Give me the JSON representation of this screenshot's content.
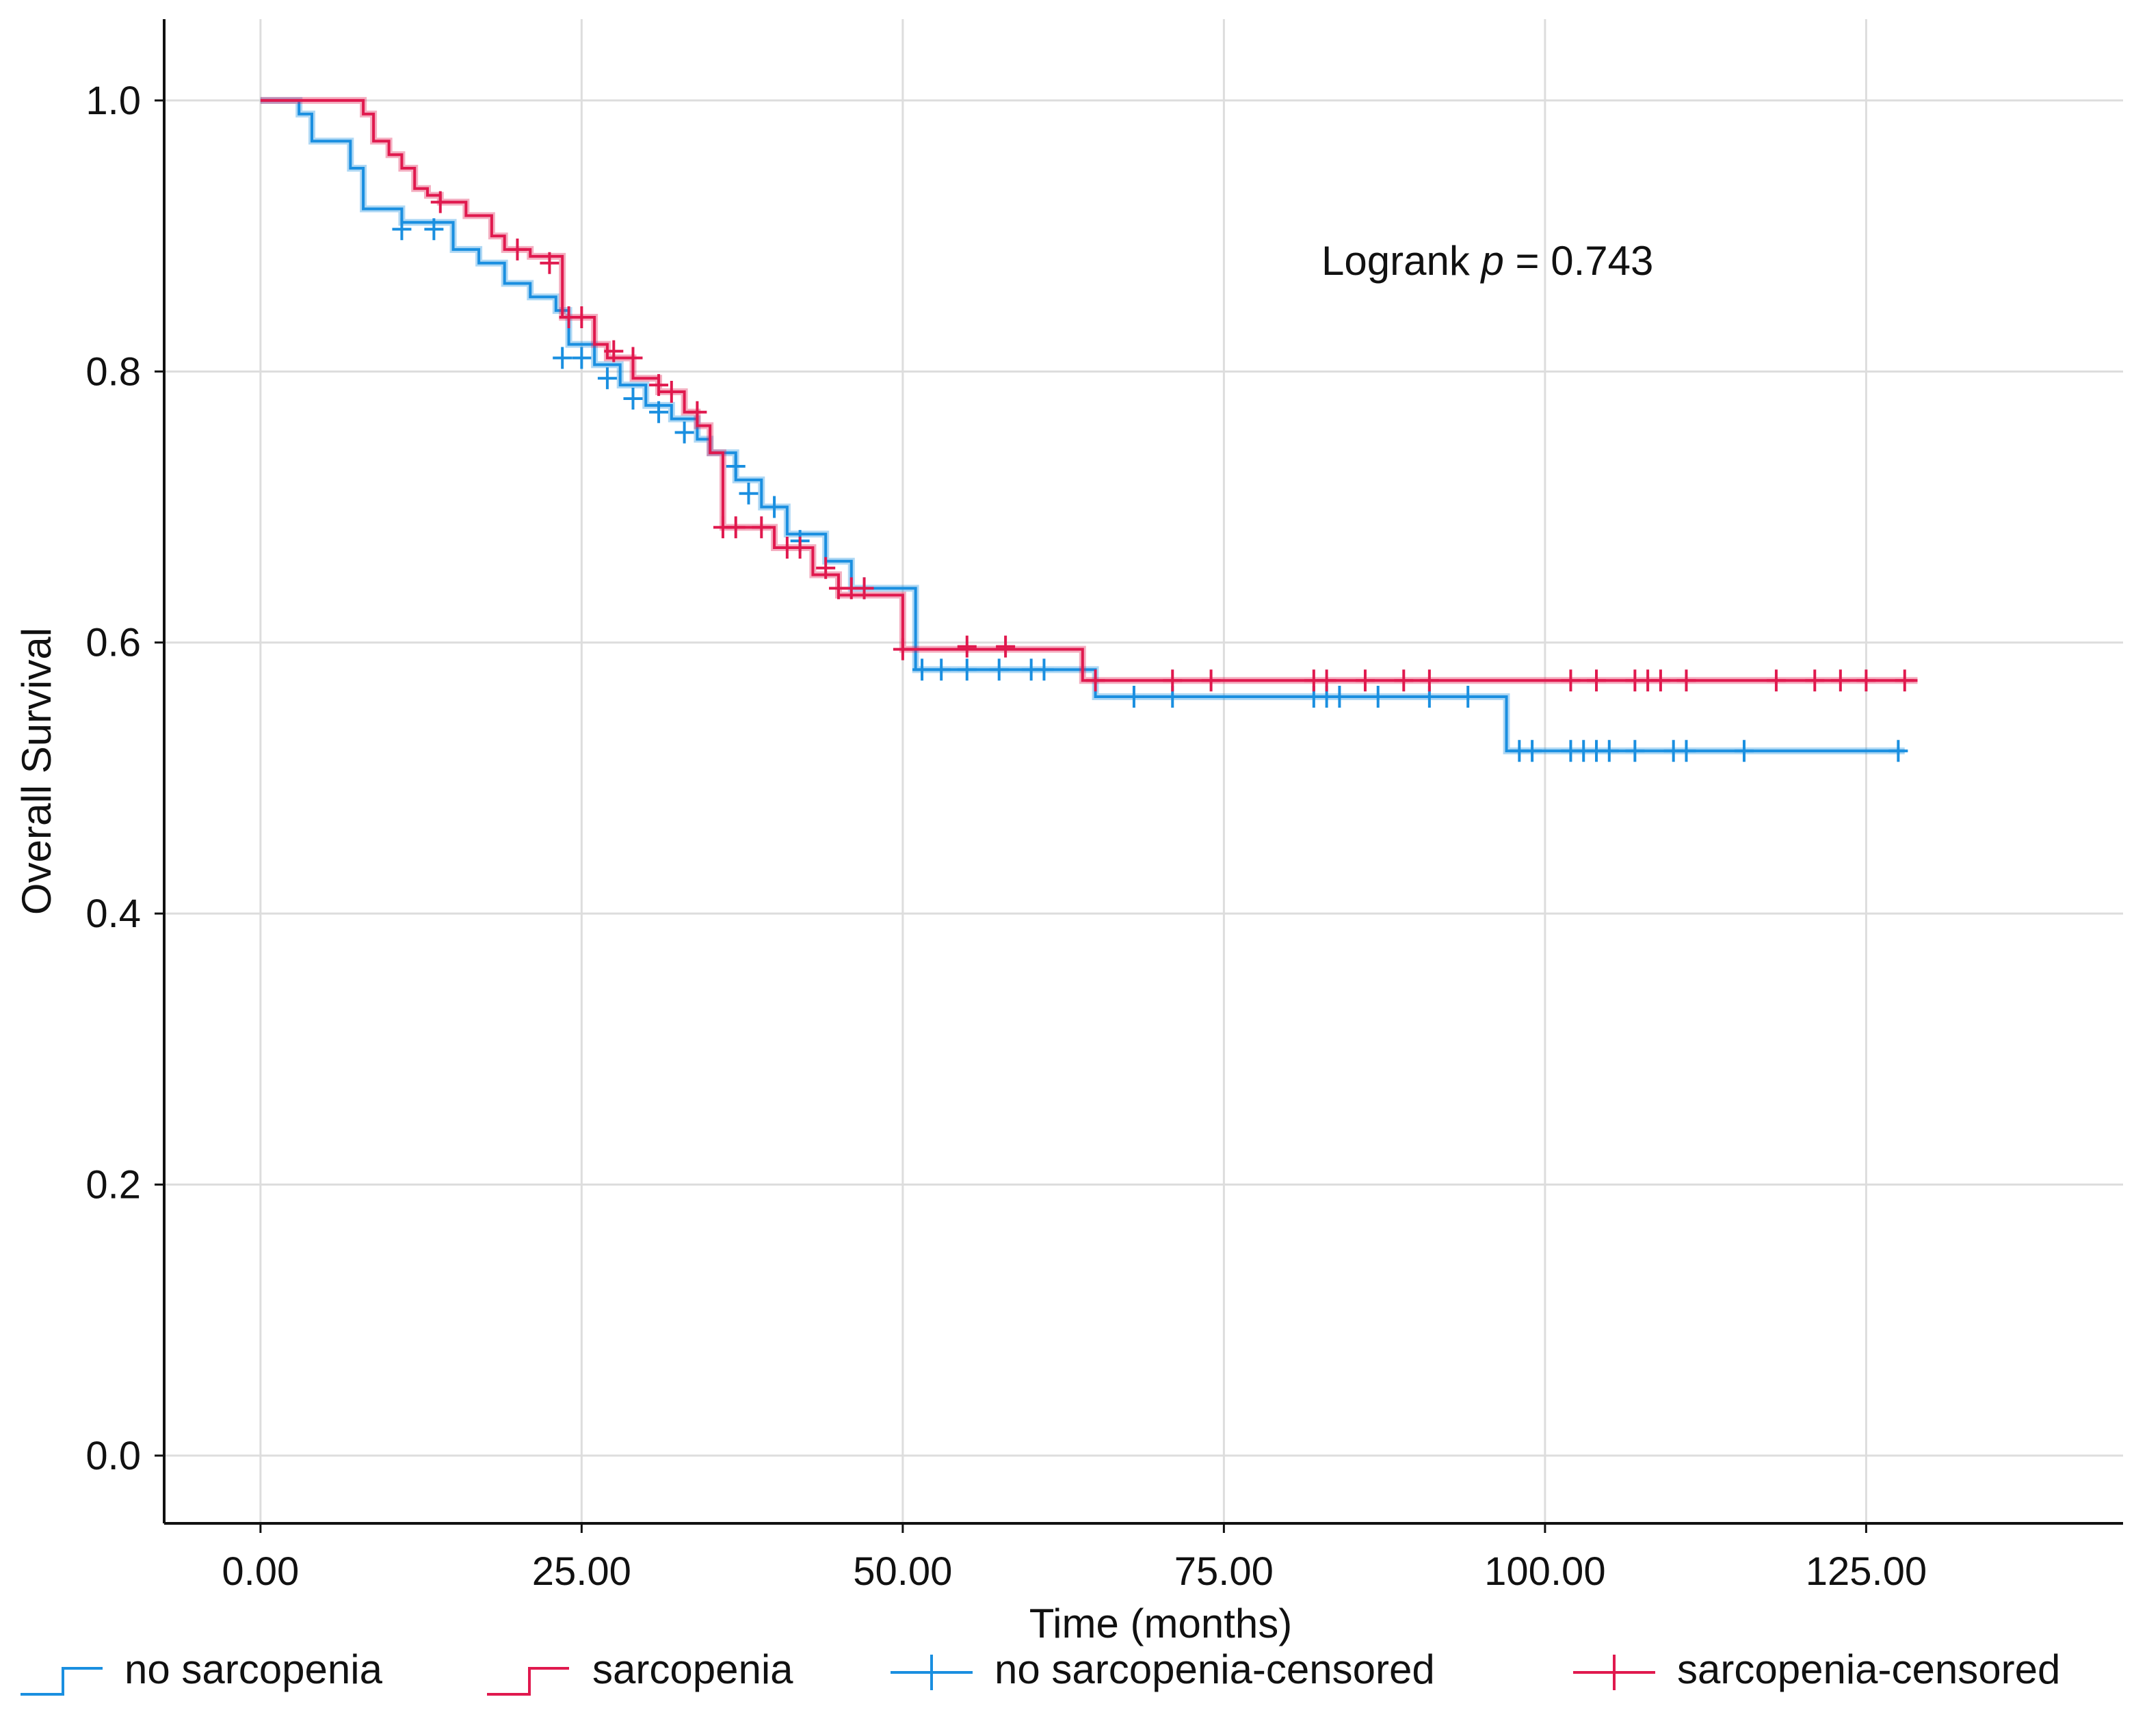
{
  "chart_data": {
    "type": "line",
    "subtype": "kaplan-meier",
    "title": "",
    "xlabel": "Time (months)",
    "ylabel": "Overall Survival",
    "xlim": [
      -7.5,
      145
    ],
    "ylim": [
      -0.05,
      1.06
    ],
    "xticks": [
      0,
      25,
      50,
      75,
      100,
      125
    ],
    "xtick_labels": [
      "0.00",
      "25.00",
      "50.00",
      "75.00",
      "100.00",
      "125.00"
    ],
    "yticks": [
      0.0,
      0.2,
      0.4,
      0.6,
      0.8,
      1.0
    ],
    "ytick_labels": [
      "0.0",
      "0.2",
      "0.4",
      "0.6",
      "0.8",
      "1.0"
    ],
    "grid": true,
    "legend_position": "bottom",
    "annotation": {
      "prefix": "Logrank ",
      "italic": "p",
      "suffix": " = 0.743"
    },
    "series": [
      {
        "name": "no sarcopenia",
        "color": "#1a8fe0",
        "steps": [
          [
            0,
            1.0
          ],
          [
            3,
            0.99
          ],
          [
            4,
            0.97
          ],
          [
            7,
            0.95
          ],
          [
            8,
            0.92
          ],
          [
            11,
            0.91
          ],
          [
            15,
            0.89
          ],
          [
            17,
            0.88
          ],
          [
            19,
            0.865
          ],
          [
            21,
            0.855
          ],
          [
            23,
            0.845
          ],
          [
            24,
            0.82
          ],
          [
            26,
            0.805
          ],
          [
            28,
            0.79
          ],
          [
            30,
            0.775
          ],
          [
            32,
            0.765
          ],
          [
            34,
            0.75
          ],
          [
            35,
            0.74
          ],
          [
            37,
            0.72
          ],
          [
            39,
            0.7
          ],
          [
            41,
            0.68
          ],
          [
            44,
            0.66
          ],
          [
            46,
            0.64
          ],
          [
            51,
            0.58
          ],
          [
            65,
            0.56
          ],
          [
            97,
            0.52
          ],
          [
            128,
            0.52
          ]
        ],
        "censored": [
          [
            11,
            0.905
          ],
          [
            13.5,
            0.905
          ],
          [
            23.5,
            0.81
          ],
          [
            25,
            0.81
          ],
          [
            27,
            0.795
          ],
          [
            29,
            0.78
          ],
          [
            31,
            0.77
          ],
          [
            33,
            0.755
          ],
          [
            37,
            0.73
          ],
          [
            38,
            0.71
          ],
          [
            40,
            0.7
          ],
          [
            42,
            0.675
          ],
          [
            47,
            0.64
          ],
          [
            51.5,
            0.58
          ],
          [
            53,
            0.58
          ],
          [
            55,
            0.58
          ],
          [
            57.5,
            0.58
          ],
          [
            60,
            0.58
          ],
          [
            61,
            0.58
          ],
          [
            68,
            0.56
          ],
          [
            71,
            0.56
          ],
          [
            82,
            0.56
          ],
          [
            83,
            0.56
          ],
          [
            84,
            0.56
          ],
          [
            87,
            0.56
          ],
          [
            91,
            0.56
          ],
          [
            94,
            0.56
          ],
          [
            98,
            0.52
          ],
          [
            99,
            0.52
          ],
          [
            102,
            0.52
          ],
          [
            103,
            0.52
          ],
          [
            104,
            0.52
          ],
          [
            105,
            0.52
          ],
          [
            107,
            0.52
          ],
          [
            110,
            0.52
          ],
          [
            111,
            0.52
          ],
          [
            115.5,
            0.52
          ],
          [
            127.5,
            0.52
          ]
        ]
      },
      {
        "name": "sarcopenia",
        "color": "#e0194e",
        "steps": [
          [
            0,
            1.0
          ],
          [
            8,
            0.99
          ],
          [
            8.8,
            0.97
          ],
          [
            10,
            0.96
          ],
          [
            11,
            0.95
          ],
          [
            12,
            0.935
          ],
          [
            13,
            0.93
          ],
          [
            14,
            0.925
          ],
          [
            16,
            0.915
          ],
          [
            18,
            0.9
          ],
          [
            19,
            0.89
          ],
          [
            21,
            0.885
          ],
          [
            23.5,
            0.84
          ],
          [
            26,
            0.82
          ],
          [
            27,
            0.81
          ],
          [
            29,
            0.795
          ],
          [
            31,
            0.785
          ],
          [
            33,
            0.77
          ],
          [
            34,
            0.76
          ],
          [
            35,
            0.74
          ],
          [
            36,
            0.685
          ],
          [
            40,
            0.67
          ],
          [
            43,
            0.65
          ],
          [
            45,
            0.635
          ],
          [
            50,
            0.595
          ],
          [
            64,
            0.572
          ],
          [
            129,
            0.572
          ]
        ],
        "censored": [
          [
            14,
            0.925
          ],
          [
            20,
            0.89
          ],
          [
            22.5,
            0.88
          ],
          [
            24,
            0.84
          ],
          [
            25,
            0.84
          ],
          [
            27.5,
            0.815
          ],
          [
            29,
            0.81
          ],
          [
            31,
            0.79
          ],
          [
            32,
            0.785
          ],
          [
            34,
            0.77
          ],
          [
            36,
            0.685
          ],
          [
            37,
            0.685
          ],
          [
            39,
            0.685
          ],
          [
            41,
            0.67
          ],
          [
            42,
            0.67
          ],
          [
            44,
            0.655
          ],
          [
            45,
            0.64
          ],
          [
            46,
            0.64
          ],
          [
            47,
            0.64
          ],
          [
            50,
            0.595
          ],
          [
            55,
            0.597
          ],
          [
            58,
            0.597
          ],
          [
            65,
            0.572
          ],
          [
            71,
            0.572
          ],
          [
            74,
            0.572
          ],
          [
            82,
            0.572
          ],
          [
            83,
            0.572
          ],
          [
            86,
            0.572
          ],
          [
            89,
            0.572
          ],
          [
            91,
            0.572
          ],
          [
            102,
            0.572
          ],
          [
            104,
            0.572
          ],
          [
            107,
            0.572
          ],
          [
            108,
            0.572
          ],
          [
            109,
            0.572
          ],
          [
            111,
            0.572
          ],
          [
            118,
            0.572
          ],
          [
            121,
            0.572
          ],
          [
            123,
            0.572
          ],
          [
            125,
            0.572
          ],
          [
            128,
            0.572
          ]
        ]
      }
    ],
    "legend": [
      {
        "label": "no sarcopenia",
        "symbol": "step",
        "color": "#1a8fe0"
      },
      {
        "label": "sarcopenia",
        "symbol": "step",
        "color": "#e0194e"
      },
      {
        "label": "no sarcopenia-censored",
        "symbol": "plus",
        "color": "#1a8fe0"
      },
      {
        "label": "sarcopenia-censored",
        "symbol": "plus",
        "color": "#e0194e"
      }
    ]
  }
}
